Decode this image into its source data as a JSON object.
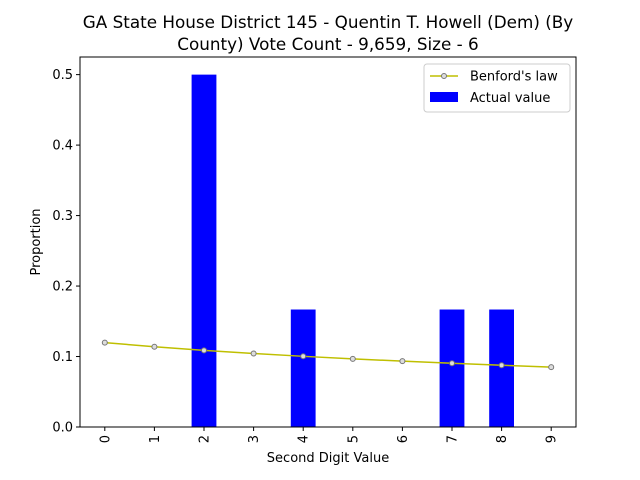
{
  "chart_data": {
    "type": "bar",
    "title_line1": "GA State House District 145 - Quentin T. Howell (Dem) (By",
    "title_line2": "County) Vote Count - 9,659, Size - 6",
    "xlabel": "Second Digit Value",
    "ylabel": "Proportion",
    "categories": [
      "0",
      "1",
      "2",
      "3",
      "4",
      "5",
      "6",
      "7",
      "8",
      "9"
    ],
    "ylim": [
      0,
      0.525
    ],
    "yticks": [
      0.0,
      0.1,
      0.2,
      0.3,
      0.4,
      0.5
    ],
    "ytick_labels": [
      "0.0",
      "0.1",
      "0.2",
      "0.3",
      "0.4",
      "0.5"
    ],
    "legend_position": "top-right",
    "series": [
      {
        "name": "Actual value",
        "kind": "bar",
        "color": "#0000ff",
        "values": [
          0,
          0,
          0.5,
          0,
          0.1667,
          0,
          0,
          0.1667,
          0.1667,
          0
        ]
      },
      {
        "name": "Benford's law",
        "kind": "line",
        "color": "#bfbf00",
        "values": [
          0.1197,
          0.1139,
          0.1088,
          0.1043,
          0.1003,
          0.0967,
          0.0934,
          0.0904,
          0.0876,
          0.085
        ]
      }
    ]
  }
}
